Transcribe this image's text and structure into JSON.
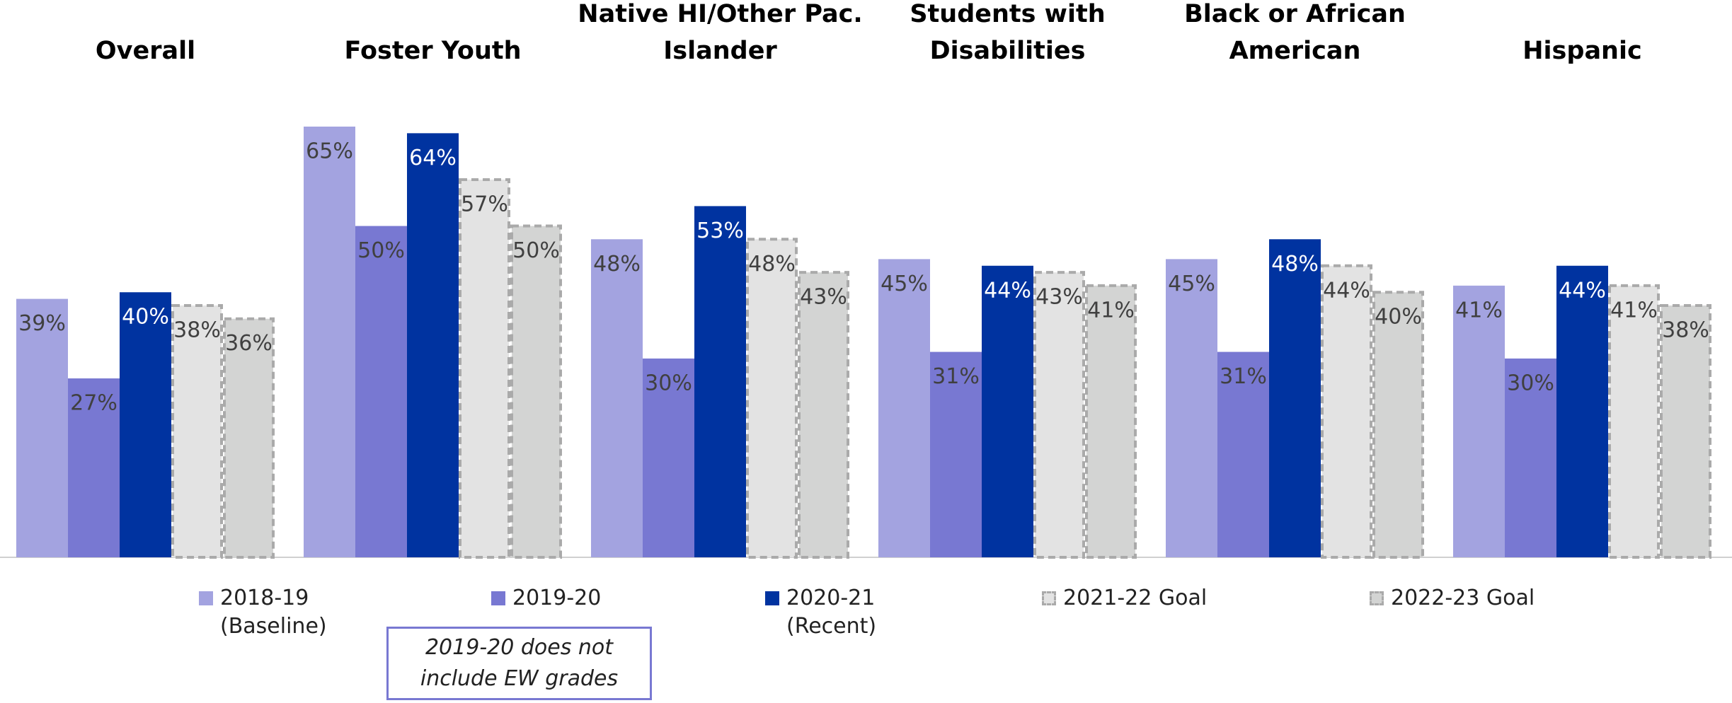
{
  "chart_data": {
    "type": "bar",
    "categories": [
      "Overall",
      "Foster Youth",
      "Native HI/Other Pac. Islander",
      "Students with Disabilities",
      "Black or African American",
      "Hispanic"
    ],
    "series": [
      {
        "name": "2018-19 (Baseline)",
        "color": "#a3a3e0",
        "values": [
          39,
          65,
          48,
          45,
          45,
          41
        ],
        "value_labels": [
          "39%",
          "65%",
          "48%",
          "45%",
          "45%",
          "41%"
        ]
      },
      {
        "name": "2019-20",
        "color": "#7878d2",
        "values": [
          27,
          50,
          30,
          31,
          31,
          30
        ],
        "value_labels": [
          "27%",
          "50%",
          "30%",
          "31%",
          "31%",
          "30%"
        ]
      },
      {
        "name": "2020-21 (Recent)",
        "color": "#0033a0",
        "values": [
          40,
          64,
          53,
          44,
          48,
          44
        ],
        "value_labels": [
          "40%",
          "64%",
          "53%",
          "44%",
          "48%",
          "44%"
        ]
      },
      {
        "name": "2021-22 Goal",
        "color": "#e3e3e3",
        "values": [
          38,
          57,
          48,
          43,
          44,
          41
        ],
        "value_labels": [
          "38%",
          "57%",
          "48%",
          "43%",
          "44%",
          "41%"
        ]
      },
      {
        "name": "2022-23 Goal",
        "color": "#d3d4d3",
        "values": [
          36,
          50,
          43,
          41,
          40,
          38
        ],
        "value_labels": [
          "36%",
          "50%",
          "43%",
          "41%",
          "40%",
          "38%"
        ]
      }
    ],
    "dashed_series": [
      3,
      4
    ],
    "ylim": [
      0,
      65
    ],
    "annotation": "2019-20 does not include EW grades"
  }
}
